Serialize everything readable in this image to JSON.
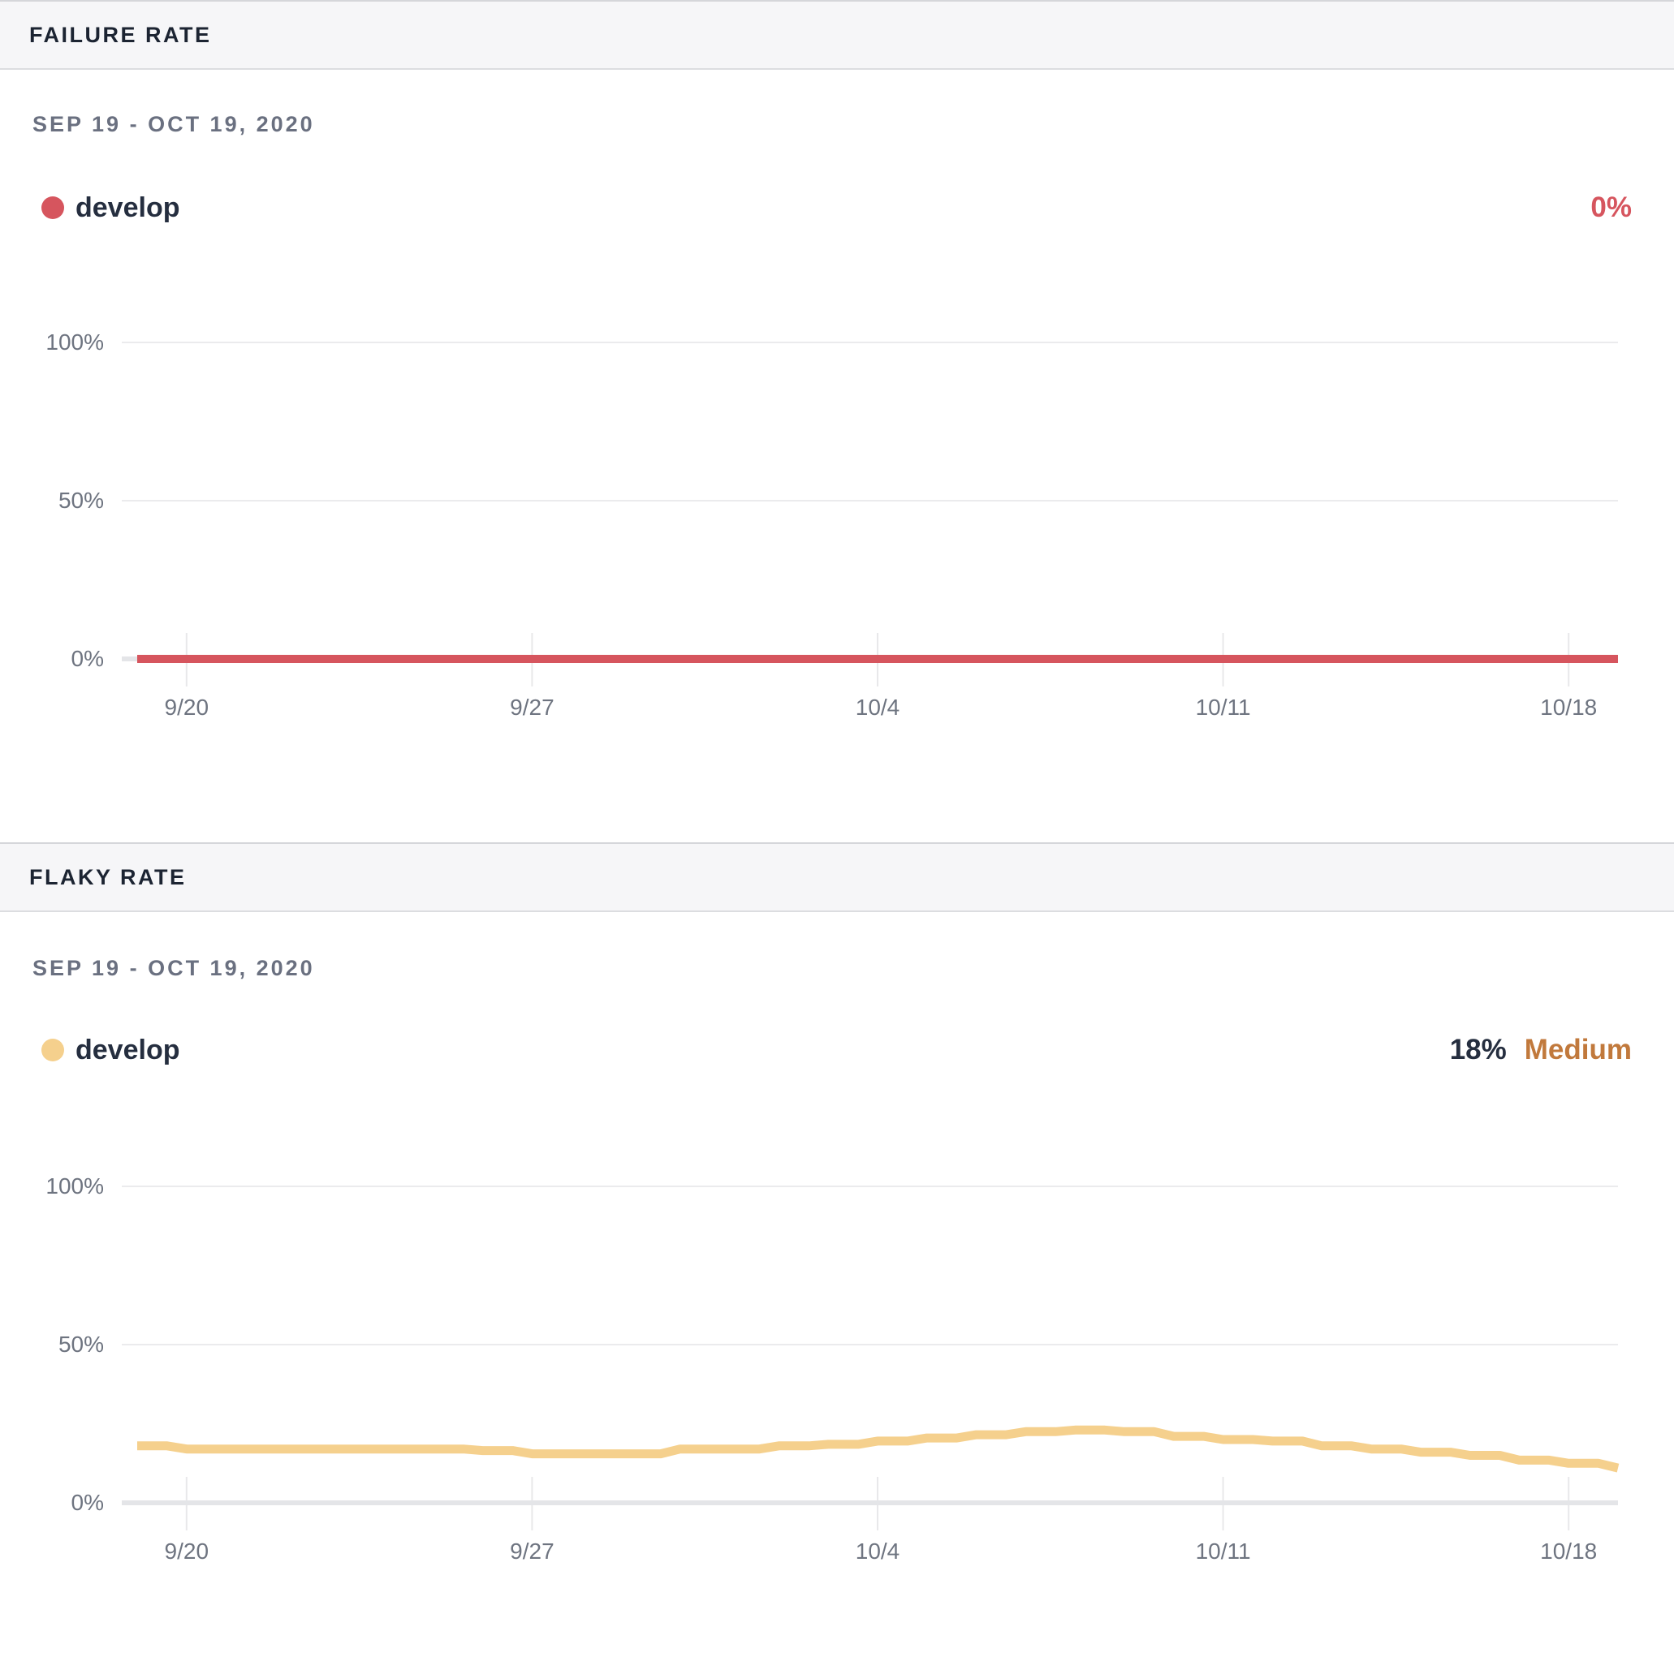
{
  "panels": [
    {
      "title": "FAILURE RATE",
      "date_range": "SEP 19 - OCT 19, 2020",
      "legend": {
        "label": "develop",
        "color": "#d6555e"
      },
      "value": "0%",
      "value_color": "#d6555e"
    },
    {
      "title": "FLAKY RATE",
      "date_range": "SEP 19 - OCT 19, 2020",
      "legend": {
        "label": "develop",
        "color": "#f5d08d"
      },
      "value": "18%",
      "value_color": "#252e3f",
      "severity": "Medium",
      "severity_color": "#c1793c"
    }
  ],
  "chart_data": [
    {
      "type": "line",
      "title": "Failure Rate",
      "date_range": "Sep 19 - Oct 19, 2020",
      "x_tick_labels": [
        "9/20",
        "9/27",
        "10/4",
        "10/11",
        "10/18"
      ],
      "x_tick_days": [
        1,
        8,
        15,
        22,
        29
      ],
      "x_range_days": [
        0,
        30
      ],
      "y_tick_labels": [
        "100%",
        "50%",
        "0%"
      ],
      "y_tick_values": [
        100,
        50,
        0
      ],
      "ylim": [
        0,
        100
      ],
      "grid": true,
      "legend_position": "top-left",
      "series": [
        {
          "name": "develop",
          "color": "#d6555e",
          "current_value_pct": 0,
          "values_daily_pct": [
            0,
            0,
            0,
            0,
            0,
            0,
            0,
            0,
            0,
            0,
            0,
            0,
            0,
            0,
            0,
            0,
            0,
            0,
            0,
            0,
            0,
            0,
            0,
            0,
            0,
            0,
            0,
            0,
            0,
            0,
            0
          ]
        }
      ]
    },
    {
      "type": "line",
      "title": "Flaky Rate",
      "date_range": "Sep 19 - Oct 19, 2020",
      "x_tick_labels": [
        "9/20",
        "9/27",
        "10/4",
        "10/11",
        "10/18"
      ],
      "x_tick_days": [
        1,
        8,
        15,
        22,
        29
      ],
      "x_range_days": [
        0,
        30
      ],
      "y_tick_labels": [
        "100%",
        "50%",
        "0%"
      ],
      "y_tick_values": [
        100,
        50,
        0
      ],
      "ylim": [
        0,
        100
      ],
      "grid": true,
      "legend_position": "top-left",
      "series": [
        {
          "name": "develop",
          "color": "#f5d08d",
          "current_value_pct": 18,
          "severity": "Medium",
          "values_daily_pct": [
            18,
            17,
            17,
            17,
            17,
            17,
            17,
            16.5,
            15.5,
            15.5,
            15.5,
            17,
            17,
            18,
            18.5,
            19.5,
            20.5,
            21.5,
            22.5,
            23,
            22.5,
            21,
            20,
            19.5,
            18,
            17,
            16,
            15,
            13.5,
            12.5,
            11
          ]
        }
      ]
    }
  ]
}
